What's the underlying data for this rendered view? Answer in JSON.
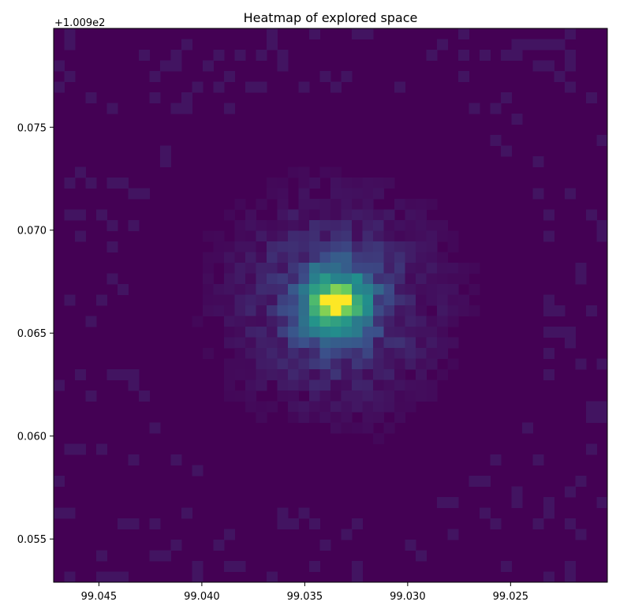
{
  "chart_data": {
    "type": "heatmap",
    "title": "Heatmap of explored space",
    "xlabel": "",
    "ylabel": "",
    "colormap": "viridis",
    "y_offset_label": "+1.009e2",
    "xlim": [
      99.0472,
      99.0203
    ],
    "ylim": [
      0.0529,
      0.0798
    ],
    "x_ticks": [
      {
        "value": 99.045,
        "label": "99.045"
      },
      {
        "value": 99.04,
        "label": "99.040"
      },
      {
        "value": 99.035,
        "label": "99.035"
      },
      {
        "value": 99.03,
        "label": "99.030"
      },
      {
        "value": 99.025,
        "label": "99.025"
      }
    ],
    "y_ticks": [
      {
        "value": 0.055,
        "label": "0.055"
      },
      {
        "value": 0.06,
        "label": "0.060"
      },
      {
        "value": 0.065,
        "label": "0.065"
      },
      {
        "value": 0.07,
        "label": "0.070"
      },
      {
        "value": 0.075,
        "label": "0.075"
      }
    ],
    "grid": false,
    "hotspot": {
      "x": 99.0335,
      "y": 0.0665,
      "intensity": 1.0
    },
    "background_intensity": 0.0,
    "random_seed": 7
  }
}
